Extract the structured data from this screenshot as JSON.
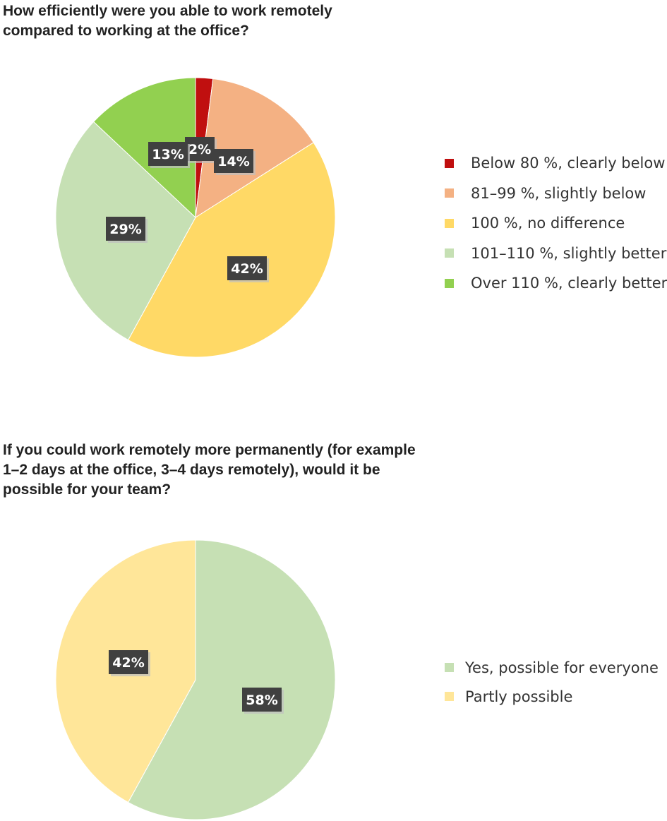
{
  "chart_data": [
    {
      "type": "pie",
      "title": "How efficiently were you able to work remotely compared to working at the office?",
      "categories": [
        "Below 80 %, clearly below",
        "81–99 %, slightly below",
        "100 %, no difference",
        "101–110 %, slightly better",
        "Over 110 %, clearly better"
      ],
      "values": [
        2,
        14,
        42,
        29,
        13
      ],
      "labels": [
        "2%",
        "14%",
        "42%",
        "29%",
        "13%"
      ],
      "colors": [
        "#c00f0f",
        "#f4b183",
        "#ffd966",
        "#c6e0b4",
        "#92d050"
      ],
      "legend_position": "right"
    },
    {
      "type": "pie",
      "title": "If you could work remotely more permanently (for example 1–2 days at the office, 3–4 days remotely), would it be possible for your team?",
      "categories": [
        "Yes, possible for everyone",
        "Partly possible"
      ],
      "values": [
        58,
        42
      ],
      "labels": [
        "58%",
        "42%"
      ],
      "colors": [
        "#c6e0b4",
        "#ffe699"
      ],
      "legend_position": "right"
    }
  ]
}
